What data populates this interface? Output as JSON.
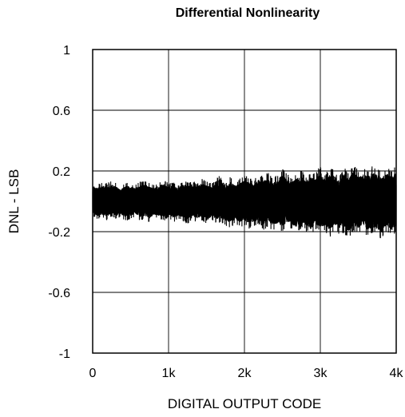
{
  "chart_data": {
    "type": "line",
    "title": "Differential Nonlinearity",
    "xlabel": "DIGITAL OUTPUT CODE",
    "ylabel": "DNL - LSB",
    "xlim": [
      0,
      4096
    ],
    "ylim": [
      -1,
      1
    ],
    "x_ticks": [
      {
        "value": 0,
        "label": "0"
      },
      {
        "value": 1024,
        "label": "1k"
      },
      {
        "value": 2048,
        "label": "2k"
      },
      {
        "value": 3072,
        "label": "3k"
      },
      {
        "value": 4096,
        "label": "4k"
      }
    ],
    "y_ticks": [
      {
        "value": 1,
        "label": "1"
      },
      {
        "value": 0.6,
        "label": "0.6"
      },
      {
        "value": 0.2,
        "label": "0.2"
      },
      {
        "value": -0.2,
        "label": "-0.2"
      },
      {
        "value": -0.6,
        "label": "-0.6"
      },
      {
        "value": -1,
        "label": "-1"
      }
    ],
    "grid": true,
    "series": [
      {
        "x_start": 0,
        "x_step": 64,
        "envelope_max": [
          0.13,
          0.11,
          0.13,
          0.12,
          0.14,
          0.12,
          0.1,
          0.13,
          0.12,
          0.11,
          0.13,
          0.14,
          0.12,
          0.11,
          0.13,
          0.15,
          0.12,
          0.13,
          0.11,
          0.14,
          0.13,
          0.14,
          0.12,
          0.15,
          0.13,
          0.12,
          0.14,
          0.2,
          0.12,
          0.16,
          0.13,
          0.15,
          0.17,
          0.16,
          0.14,
          0.18,
          0.17,
          0.19,
          0.15,
          0.18,
          0.22,
          0.18,
          0.16,
          0.19,
          0.21,
          0.17,
          0.2,
          0.18,
          0.24,
          0.18,
          0.22,
          0.21,
          0.17,
          0.23,
          0.19,
          0.25,
          0.2,
          0.23,
          0.21,
          0.24,
          0.22,
          0.2,
          0.23,
          0.21,
          0.24
        ],
        "envelope_min": [
          -0.1,
          -0.12,
          -0.11,
          -0.13,
          -0.1,
          -0.12,
          -0.11,
          -0.13,
          -0.12,
          -0.1,
          -0.13,
          -0.12,
          -0.14,
          -0.11,
          -0.12,
          -0.13,
          -0.11,
          -0.14,
          -0.12,
          -0.13,
          -0.15,
          -0.12,
          -0.14,
          -0.13,
          -0.16,
          -0.13,
          -0.15,
          -0.14,
          -0.16,
          -0.18,
          -0.15,
          -0.17,
          -0.16,
          -0.18,
          -0.17,
          -0.15,
          -0.19,
          -0.17,
          -0.2,
          -0.18,
          -0.21,
          -0.17,
          -0.19,
          -0.22,
          -0.18,
          -0.2,
          -0.23,
          -0.19,
          -0.21,
          -0.2,
          -0.24,
          -0.19,
          -0.22,
          -0.21,
          -0.25,
          -0.2,
          -0.22,
          -0.19,
          -0.24,
          -0.21,
          -0.23,
          -0.26,
          -0.2,
          -0.24,
          -0.21
        ]
      }
    ]
  }
}
